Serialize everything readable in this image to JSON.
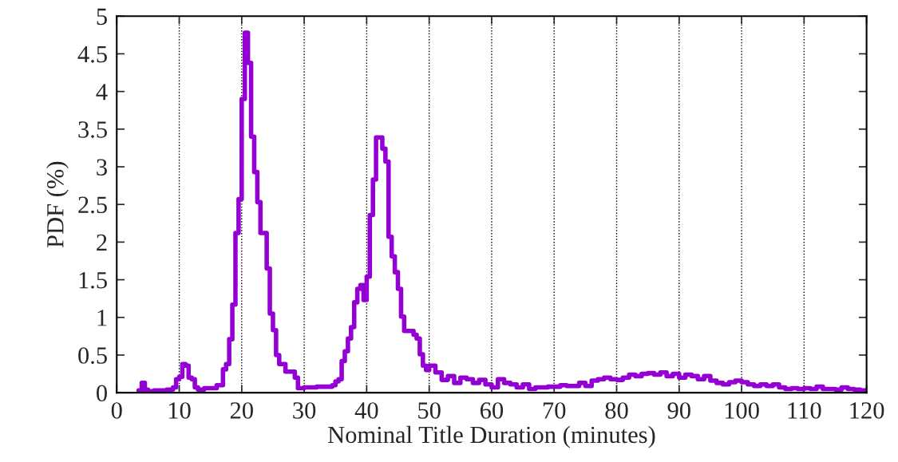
{
  "chart_data": {
    "type": "histogram",
    "xlabel": "Nominal Title Duration (minutes)",
    "ylabel": "PDF (%)",
    "bins": [
      3.5,
      4,
      4.5,
      5,
      6,
      7,
      8,
      9,
      9.5,
      10,
      10.5,
      11,
      11.5,
      12,
      12.5,
      13,
      14,
      15,
      16,
      16.5,
      17,
      17.5,
      18,
      18.5,
      19,
      19.5,
      20,
      20.5,
      21,
      21.5,
      22,
      22.5,
      23,
      24,
      24.5,
      25,
      25.5,
      26,
      27,
      28.5,
      29,
      30,
      31,
      32,
      33,
      34,
      34.5,
      35,
      35.5,
      36,
      36.5,
      37,
      37.5,
      38,
      38.5,
      39,
      39.5,
      40,
      40.5,
      41,
      41.5,
      42,
      42.5,
      43,
      43.5,
      44,
      44.5,
      45,
      45.5,
      46,
      46.5,
      47,
      47.5,
      48,
      48.5,
      49,
      49.5,
      50,
      51,
      52,
      53,
      54,
      55,
      56,
      57,
      58,
      59,
      60,
      61,
      62,
      63,
      64,
      65,
      66,
      67,
      68,
      69,
      70,
      71,
      72,
      73,
      74,
      75,
      76,
      77,
      78,
      79,
      80,
      81,
      82,
      83,
      84,
      85,
      86,
      87,
      88,
      89,
      90,
      91,
      92,
      93,
      94,
      95,
      96,
      97,
      98,
      99,
      100,
      101,
      102,
      103,
      104,
      105,
      106,
      107,
      108,
      109,
      110,
      111,
      112,
      113,
      114,
      115,
      116,
      117,
      118,
      119,
      120
    ],
    "values": [
      0.03,
      0.13,
      0.04,
      0.02,
      0.03,
      0.03,
      0.04,
      0.07,
      0.18,
      0.21,
      0.38,
      0.36,
      0.2,
      0.18,
      0.07,
      0.04,
      0.06,
      0.06,
      0.1,
      0.1,
      0.31,
      0.38,
      0.71,
      1.17,
      2.12,
      2.57,
      3.9,
      4.78,
      4.38,
      3.4,
      2.93,
      2.53,
      2.12,
      1.65,
      1.05,
      0.83,
      0.5,
      0.38,
      0.28,
      0.2,
      0.06,
      0.07,
      0.07,
      0.08,
      0.08,
      0.08,
      0.1,
      0.15,
      0.18,
      0.42,
      0.55,
      0.72,
      0.87,
      1.2,
      1.38,
      1.43,
      1.23,
      1.54,
      2.36,
      2.83,
      3.39,
      3.39,
      3.24,
      3.07,
      2.07,
      1.81,
      1.6,
      1.38,
      1.01,
      0.82,
      0.82,
      0.82,
      0.77,
      0.72,
      0.51,
      0.36,
      0.3,
      0.36,
      0.27,
      0.17,
      0.22,
      0.13,
      0.2,
      0.18,
      0.13,
      0.17,
      0.11,
      0.07,
      0.18,
      0.13,
      0.11,
      0.07,
      0.11,
      0.05,
      0.07,
      0.07,
      0.08,
      0.08,
      0.1,
      0.09,
      0.09,
      0.13,
      0.09,
      0.16,
      0.18,
      0.2,
      0.18,
      0.17,
      0.2,
      0.24,
      0.22,
      0.25,
      0.26,
      0.24,
      0.27,
      0.22,
      0.25,
      0.2,
      0.24,
      0.22,
      0.18,
      0.22,
      0.16,
      0.13,
      0.11,
      0.14,
      0.16,
      0.14,
      0.11,
      0.09,
      0.11,
      0.09,
      0.11,
      0.07,
      0.05,
      0.06,
      0.05,
      0.06,
      0.05,
      0.08,
      0.05,
      0.05,
      0.04,
      0.07,
      0.05,
      0.04,
      0.03
    ],
    "color": "#9400d3",
    "xlim": [
      0,
      120
    ],
    "xticks": [
      0,
      10,
      20,
      30,
      40,
      50,
      60,
      70,
      80,
      90,
      100,
      110,
      120
    ],
    "ylim": [
      0,
      5
    ],
    "yticks": [
      0,
      0.5,
      1,
      1.5,
      2,
      2.5,
      3,
      3.5,
      4,
      4.5,
      5
    ],
    "grid": "x",
    "legend": false,
    "line_style": "solid"
  }
}
